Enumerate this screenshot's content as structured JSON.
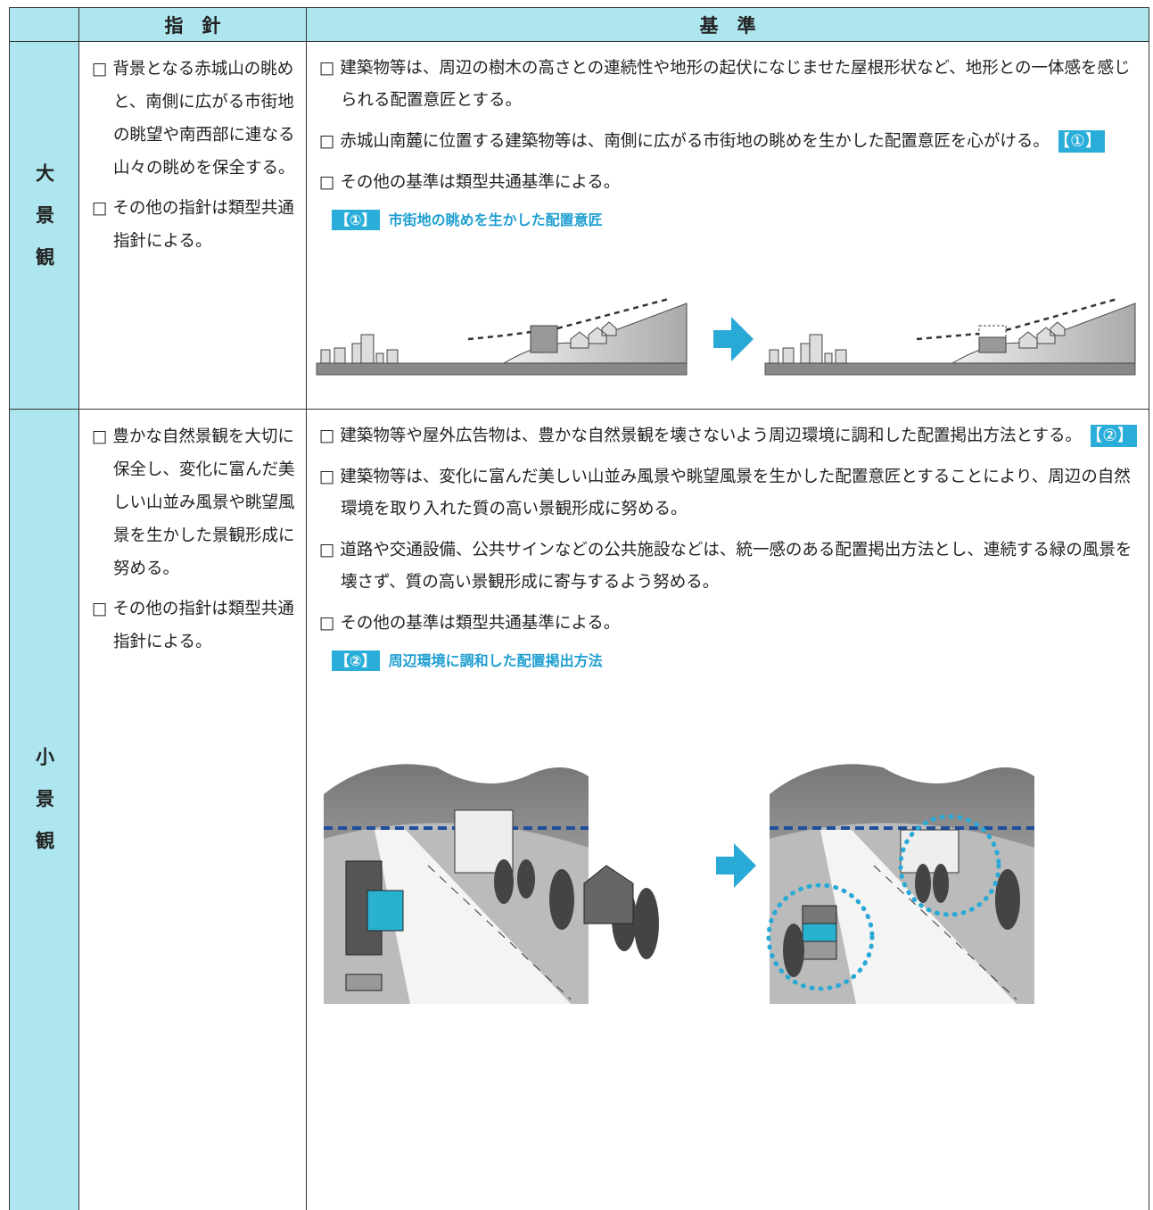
{
  "header": {
    "guideline": "指　針",
    "standard": "基　準"
  },
  "rows": [
    {
      "label": "大景観",
      "guidelines": [
        "□ 背景となる赤城山の眺めと、南側に広がる市街地の眺望や南西部に連なる山々の眺めを保全する。",
        "□ その他の指針は類型共通指針による。"
      ],
      "standards": [
        {
          "text": "□ 建築物等は、周辺の樹木の高さとの連続性や地形の起伏になじませた屋根形状など、地形との一体感を感じられる配置意匠とする。"
        },
        {
          "text": "□ 赤城山南麓に位置する建築物等は、南側に広がる市街地の眺めを生かした配置意匠を心がける。",
          "tag": "【①】"
        },
        {
          "text": "□ その他の基準は類型共通基準による。"
        }
      ],
      "figure": {
        "tag": "【①】",
        "title": "市街地の眺めを生かした配置意匠"
      }
    },
    {
      "label": "小景観",
      "guidelines": [
        "□ 豊かな自然景観を大切に保全し、変化に富んだ美しい山並み風景や眺望風景を生かした景観形成に努める。",
        "□ その他の指針は類型共通指針による。"
      ],
      "standards": [
        {
          "text": "□ 建築物等や屋外広告物は、豊かな自然景観を壊さないよう周辺環境に調和した配置掲出方法とする。",
          "tag": "【②】"
        },
        {
          "text": "□ 建築物等は、変化に富んだ美しい山並み風景や眺望風景を生かした配置意匠とすることにより、周辺の自然環境を取り入れた質の高い景観形成に努める。"
        },
        {
          "text": "□ 道路や交通設備、公共サインなどの公共施設などは、統一感のある配置掲出方法とし、連続する緑の風景を壊さず、質の高い景観形成に寄与するよう努める。"
        },
        {
          "text": "□ その他の基準は類型共通基準による。"
        }
      ],
      "figure": {
        "tag": "【②】",
        "title": "周辺環境に調和した配置掲出方法"
      }
    }
  ]
}
